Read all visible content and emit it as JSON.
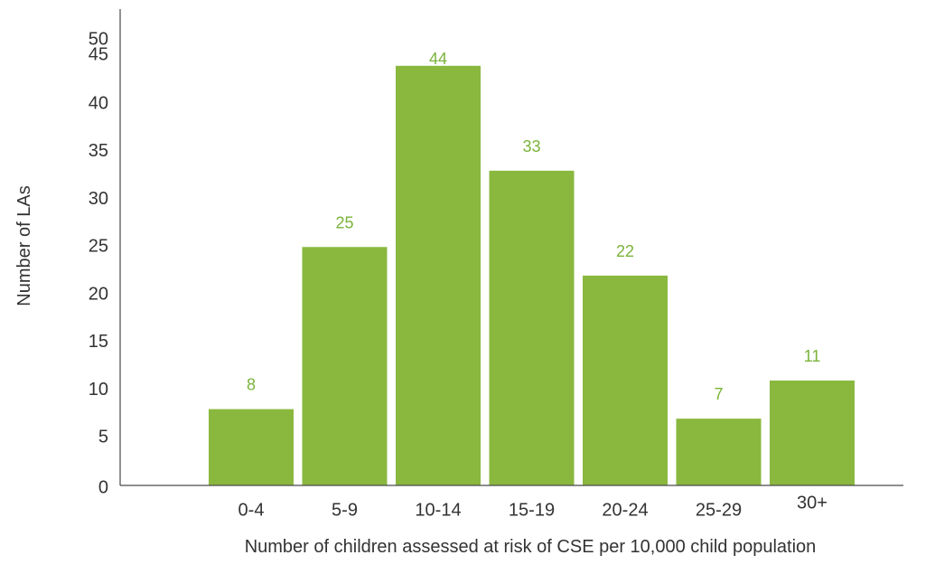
{
  "chart_data": {
    "type": "bar",
    "categories": [
      "0-4",
      "5-9",
      "10-14",
      "15-19",
      "20-24",
      "25-29",
      "30+"
    ],
    "values": [
      8,
      25,
      44,
      33,
      22,
      7,
      11
    ],
    "data_labels": [
      "8",
      "25",
      "44",
      "33",
      "22",
      "7",
      "11"
    ],
    "xlabel": "Number of children assessed at risk of CSE per 10,000 child population",
    "ylabel": "Number of LAs",
    "ylim": [
      0,
      50
    ],
    "y_ticks": [
      0,
      5,
      10,
      15,
      20,
      25,
      30,
      35,
      40,
      45,
      50
    ],
    "grid": false,
    "legend": "none",
    "colors": {
      "bar": "#8ab83f",
      "label": "#7ab33a",
      "axis": "#4a4a4a",
      "text": "#333333"
    }
  }
}
